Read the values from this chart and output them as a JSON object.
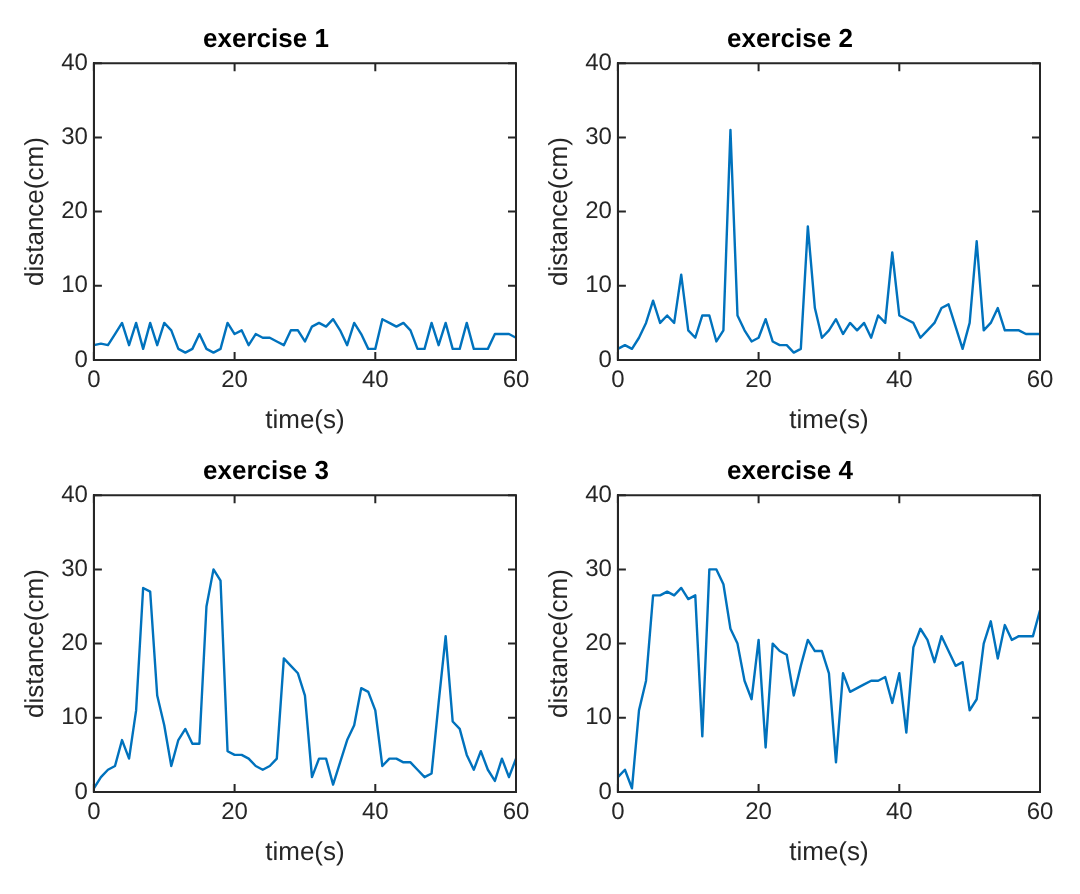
{
  "chart_data": [
    {
      "type": "line",
      "title": "exercise 1",
      "xlabel": "time(s)",
      "ylabel": "distance(cm)",
      "x": [
        0,
        1,
        2,
        3,
        4,
        5,
        6,
        7,
        8,
        9,
        10,
        11,
        12,
        13,
        14,
        15,
        16,
        17,
        18,
        19,
        20,
        21,
        22,
        23,
        24,
        25,
        26,
        27,
        28,
        29,
        30,
        31,
        32,
        33,
        34,
        35,
        36,
        37,
        38,
        39,
        40,
        41,
        42,
        43,
        44,
        45,
        46,
        47,
        48,
        49,
        50,
        51,
        52,
        53,
        54,
        55,
        56,
        57,
        58,
        59,
        60
      ],
      "series": [
        {
          "color": "#0072bd",
          "values": [
            2,
            2.2,
            2,
            3.5,
            5,
            2,
            5,
            1.5,
            5,
            2,
            5,
            4,
            1.5,
            1,
            1.5,
            3.5,
            1.5,
            1,
            1.5,
            5,
            3.5,
            4,
            2,
            3.5,
            3,
            3,
            2.5,
            2,
            4,
            4,
            2.5,
            4.5,
            5,
            4.5,
            5.5,
            4,
            2,
            5,
            3.5,
            1.5,
            1.5,
            5.5,
            5,
            4.5,
            5,
            4,
            1.5,
            1.5,
            5,
            2,
            5,
            1.5,
            1.5,
            5,
            1.5,
            1.5,
            1.5,
            3.5,
            3.5,
            3.5,
            3
          ]
        }
      ],
      "xlim": [
        0,
        60
      ],
      "xticks": [
        0,
        20,
        40,
        60
      ],
      "ylim": [
        0,
        40
      ],
      "yticks": [
        0,
        10,
        20,
        30,
        40
      ],
      "grid": false,
      "legend": false,
      "marker": "none",
      "line_style": "solid"
    },
    {
      "type": "line",
      "title": "exercise 2",
      "xlabel": "time(s)",
      "ylabel": "distance(cm)",
      "x": [
        0,
        1,
        2,
        3,
        4,
        5,
        6,
        7,
        8,
        9,
        10,
        11,
        12,
        13,
        14,
        15,
        16,
        17,
        18,
        19,
        20,
        21,
        22,
        23,
        24,
        25,
        26,
        27,
        28,
        29,
        30,
        31,
        32,
        33,
        34,
        35,
        36,
        37,
        38,
        39,
        40,
        41,
        42,
        43,
        44,
        45,
        46,
        47,
        48,
        49,
        50,
        51,
        52,
        53,
        54,
        55,
        56,
        57,
        58,
        59,
        60
      ],
      "series": [
        {
          "color": "#0072bd",
          "values": [
            1.5,
            2,
            1.5,
            3,
            5,
            8,
            5,
            6,
            5,
            11.5,
            4,
            3,
            6,
            6,
            2.5,
            4,
            31,
            6,
            4,
            2.5,
            3,
            5.5,
            2.5,
            2,
            2,
            1,
            1.5,
            18,
            7,
            3,
            4,
            5.5,
            3.5,
            5,
            4,
            5,
            3,
            6,
            5,
            14.5,
            6,
            5.5,
            5,
            3,
            4,
            5,
            7,
            7.5,
            4.5,
            1.5,
            5,
            16,
            4,
            5,
            7,
            4,
            4,
            4,
            3.5,
            3.5,
            3.5
          ]
        }
      ],
      "xlim": [
        0,
        60
      ],
      "xticks": [
        0,
        20,
        40,
        60
      ],
      "ylim": [
        0,
        40
      ],
      "yticks": [
        0,
        10,
        20,
        30,
        40
      ],
      "grid": false,
      "legend": false,
      "marker": "none",
      "line_style": "solid"
    },
    {
      "type": "line",
      "title": "exercise 3",
      "xlabel": "time(s)",
      "ylabel": "distance(cm)",
      "x": [
        0,
        1,
        2,
        3,
        4,
        5,
        6,
        7,
        8,
        9,
        10,
        11,
        12,
        13,
        14,
        15,
        16,
        17,
        18,
        19,
        20,
        21,
        22,
        23,
        24,
        25,
        26,
        27,
        28,
        29,
        30,
        31,
        32,
        33,
        34,
        35,
        36,
        37,
        38,
        39,
        40,
        41,
        42,
        43,
        44,
        45,
        46,
        47,
        48,
        49,
        50,
        51,
        52,
        53,
        54,
        55,
        56,
        57,
        58,
        59,
        60
      ],
      "series": [
        {
          "color": "#0072bd",
          "values": [
            0.5,
            2,
            3,
            3.5,
            7,
            4.5,
            11,
            27.5,
            27,
            13,
            9,
            3.5,
            7,
            8.5,
            6.5,
            6.5,
            25,
            30,
            28.5,
            5.5,
            5,
            5,
            4.5,
            3.5,
            3,
            3.5,
            4.5,
            18,
            17,
            16,
            13,
            2,
            4.5,
            4.5,
            1,
            4,
            7,
            9,
            14,
            13.5,
            11,
            3.5,
            4.5,
            4.5,
            4,
            4,
            3,
            2,
            2.5,
            12,
            21,
            9.5,
            8.5,
            5,
            3,
            5.5,
            3,
            1.5,
            4.5,
            2,
            4.5
          ]
        }
      ],
      "xlim": [
        0,
        60
      ],
      "xticks": [
        0,
        20,
        40,
        60
      ],
      "ylim": [
        0,
        40
      ],
      "yticks": [
        0,
        10,
        20,
        30,
        40
      ],
      "grid": false,
      "legend": false,
      "marker": "none",
      "line_style": "solid"
    },
    {
      "type": "line",
      "title": "exercise 4",
      "xlabel": "time(s)",
      "ylabel": "distance(cm)",
      "x": [
        0,
        1,
        2,
        3,
        4,
        5,
        6,
        7,
        8,
        9,
        10,
        11,
        12,
        13,
        14,
        15,
        16,
        17,
        18,
        19,
        20,
        21,
        22,
        23,
        24,
        25,
        26,
        27,
        28,
        29,
        30,
        31,
        32,
        33,
        34,
        35,
        36,
        37,
        38,
        39,
        40,
        41,
        42,
        43,
        44,
        45,
        46,
        47,
        48,
        49,
        50,
        51,
        52,
        53,
        54,
        55,
        56,
        57,
        58,
        59,
        60
      ],
      "series": [
        {
          "color": "#0072bd",
          "values": [
            2,
            3,
            0.5,
            11,
            15,
            26.5,
            26.5,
            27,
            26.5,
            27.5,
            26,
            26.5,
            7.5,
            30,
            30,
            28,
            22,
            20,
            15,
            12.5,
            20.5,
            6,
            20,
            19,
            18.5,
            13,
            17,
            20.5,
            19,
            19,
            16,
            4,
            16,
            13.5,
            14,
            14.5,
            15,
            15,
            15.5,
            12,
            16,
            8,
            19.5,
            22,
            20.5,
            17.5,
            21,
            19,
            17,
            17.5,
            11,
            12.5,
            20,
            23,
            18,
            22.5,
            20.5,
            21,
            21,
            21,
            24.5
          ]
        }
      ],
      "xlim": [
        0,
        60
      ],
      "xticks": [
        0,
        20,
        40,
        60
      ],
      "ylim": [
        0,
        40
      ],
      "yticks": [
        0,
        10,
        20,
        30,
        40
      ],
      "grid": false,
      "legend": false,
      "marker": "none",
      "line_style": "solid"
    }
  ]
}
